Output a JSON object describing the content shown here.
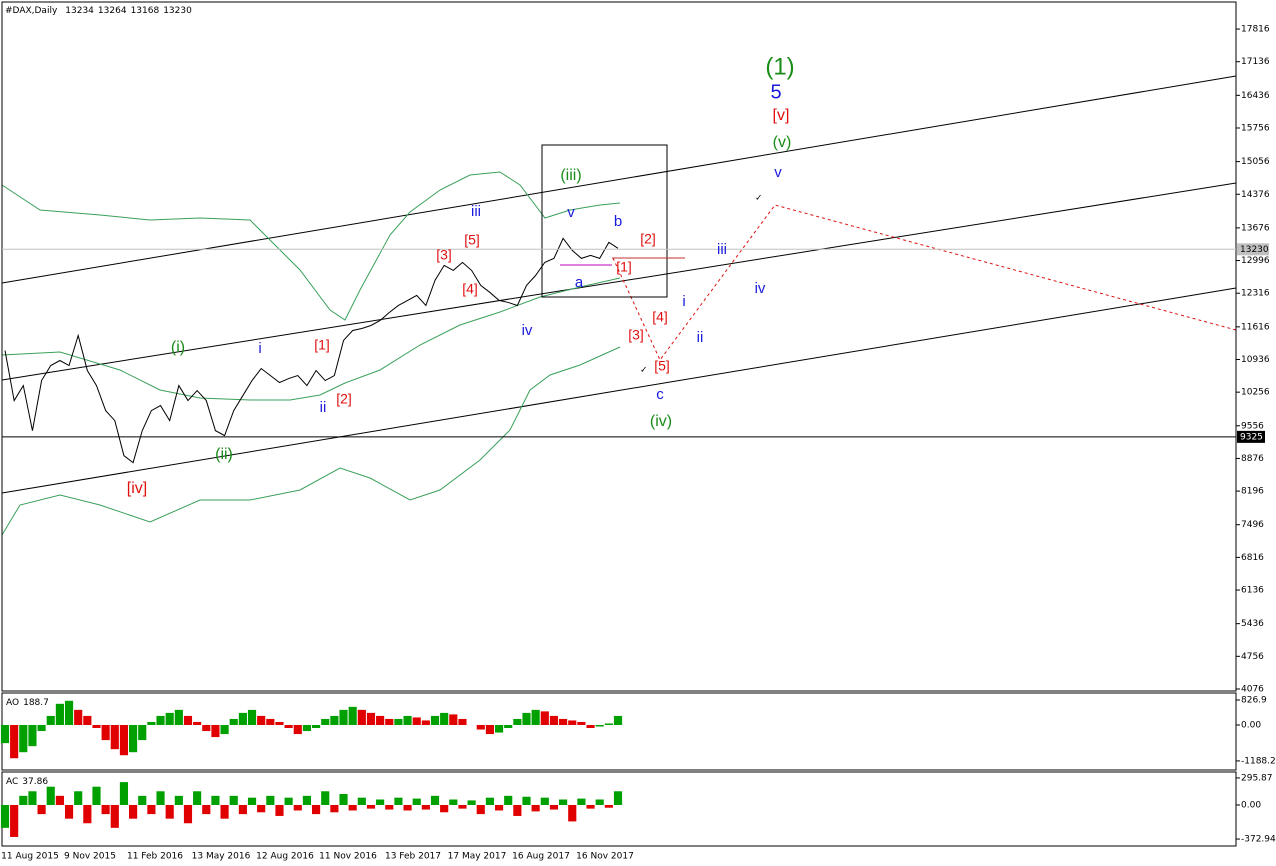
{
  "chart_data": [
    {
      "type": "line",
      "title": "#DAX,Daily",
      "ohlc": [
        13234,
        13264,
        13168,
        13230
      ],
      "xtick_labels": [
        "11 Aug 2015",
        "9 Nov 2015",
        "11 Feb 2016",
        "13 May 2016",
        "12 Aug 2016",
        "11 Nov 2016",
        "13 Feb 2017",
        "17 May 2017",
        "16 Aug 2017",
        "16 Nov 2017"
      ],
      "values": [
        11123,
        10081,
        10393,
        9455,
        10498,
        10810,
        10915,
        10810,
        11436,
        10706,
        10393,
        9872,
        9664,
        8934,
        8788,
        9455,
        9872,
        9976,
        9664,
        10393,
        10081,
        10289,
        10081,
        9455,
        9351,
        9872,
        10185,
        10498,
        10748,
        10602,
        10456,
        10539,
        10602,
        10393,
        10706,
        10498,
        10602,
        11332,
        11540,
        11582,
        11644,
        11749,
        11915,
        12061,
        12166,
        12270,
        12061,
        12583,
        12895,
        12791,
        12958,
        12791,
        12478,
        12332,
        12166,
        12124,
        12061,
        12478,
        12687,
        12958,
        13041,
        13458,
        13208,
        13041,
        13104,
        13041,
        13375,
        13250
      ],
      "color": "#000000",
      "ylim": [
        4034,
        18379
      ],
      "yticks": [
        17816,
        17136,
        16436,
        15756,
        15056,
        14376,
        13676,
        12996,
        12316,
        11616,
        10936,
        10256,
        9556,
        8876,
        8196,
        7496,
        6816,
        6136,
        5436,
        4756,
        4076
      ],
      "bid": 13230,
      "level": 9325,
      "annotations": [
        {
          "text": "(1)",
          "color": "#1a8c1a"
        },
        {
          "text": "5",
          "color": "#1a1adc"
        },
        {
          "text": "[v]",
          "color": "#e01010"
        },
        {
          "text": "(v)",
          "color": "#1a8c1a"
        },
        {
          "text": "v",
          "color": "#1a1adc"
        },
        {
          "text": "(iii)",
          "color": "#1a8c1a"
        },
        {
          "text": "iii",
          "color": "#1a1adc"
        },
        {
          "text": "v",
          "color": "#1a1adc"
        },
        {
          "text": "b",
          "color": "#1a1adc"
        },
        {
          "text": "[2]",
          "color": "#e01010"
        },
        {
          "text": "[5]",
          "color": "#e01010"
        },
        {
          "text": "[3]",
          "color": "#e01010"
        },
        {
          "text": "[4]",
          "color": "#e01010"
        },
        {
          "text": "[1]",
          "color": "#e01010"
        },
        {
          "text": "a",
          "color": "#1a1adc"
        },
        {
          "text": "iii",
          "color": "#1a1adc"
        },
        {
          "text": "iv",
          "color": "#1a1adc"
        },
        {
          "text": "i",
          "color": "#1a1adc"
        },
        {
          "text": "ii",
          "color": "#1a1adc"
        },
        {
          "text": "iv",
          "color": "#1a1adc"
        },
        {
          "text": "[4]",
          "color": "#e01010"
        },
        {
          "text": "[3]",
          "color": "#e01010"
        },
        {
          "text": "[5]",
          "color": "#e01010"
        },
        {
          "text": "c",
          "color": "#1a1adc"
        },
        {
          "text": "(iv)",
          "color": "#1a8c1a"
        },
        {
          "text": "(i)",
          "color": "#1a8c1a"
        },
        {
          "text": "i",
          "color": "#1a1adc"
        },
        {
          "text": "[1]",
          "color": "#e01010"
        },
        {
          "text": "ii",
          "color": "#1a1adc"
        },
        {
          "text": "[2]",
          "color": "#e01010"
        },
        {
          "text": "(ii)",
          "color": "#1a8c1a"
        },
        {
          "text": "[iv]",
          "color": "#e01010"
        }
      ]
    },
    {
      "type": "bar",
      "title": "AO",
      "last": 188.7,
      "up_color": "#00a000",
      "down_color": "#e00000",
      "values": [
        -600,
        -1100,
        -900,
        -700,
        -200,
        300,
        700,
        800,
        500,
        300,
        -100,
        -500,
        -800,
        -1000,
        -900,
        -500,
        100,
        300,
        400,
        500,
        300,
        100,
        -200,
        -400,
        -300,
        200,
        400,
        500,
        300,
        200,
        100,
        -100,
        -300,
        -200,
        -100,
        200,
        300,
        500,
        600,
        500,
        400,
        300,
        200,
        200,
        300,
        250,
        150,
        300,
        400,
        350,
        200,
        0,
        -150,
        -300,
        -250,
        -100,
        200,
        400,
        500,
        450,
        300,
        200,
        150,
        100,
        -100,
        -50,
        50,
        300
      ],
      "ylim": [
        -1489,
        1025
      ],
      "yticks": [
        826.9,
        {
          "value": 0,
          "label": "0.00"
        },
        -1188.2
      ]
    },
    {
      "type": "bar",
      "title": "AC",
      "last": 37.86,
      "up_color": "#00a000",
      "down_color": "#e00000",
      "values": [
        -250,
        -350,
        100,
        150,
        -100,
        200,
        100,
        -150,
        150,
        -200,
        200,
        -100,
        -250,
        250,
        -150,
        100,
        -100,
        150,
        -150,
        100,
        -200,
        150,
        -100,
        100,
        -150,
        100,
        -100,
        80,
        -80,
        100,
        -120,
        80,
        -60,
        100,
        -100,
        150,
        -80,
        120,
        -60,
        80,
        -40,
        60,
        -50,
        80,
        -60,
        70,
        -50,
        100,
        -80,
        60,
        -40,
        50,
        -100,
        80,
        -60,
        100,
        -120,
        90,
        -70,
        80,
        -50,
        60,
        -180,
        70,
        -40,
        60,
        -30,
        150
      ],
      "ylim": [
        -438,
        350
      ],
      "yticks": [
        295.87,
        {
          "value": 0,
          "label": "0.00"
        },
        -372.94
      ]
    }
  ]
}
